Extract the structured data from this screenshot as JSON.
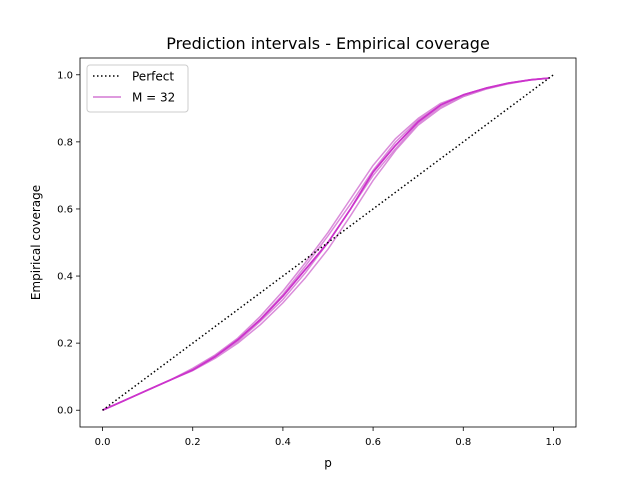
{
  "chart_data": {
    "type": "line",
    "title": "Prediction intervals - Empirical coverage",
    "xlabel": "p",
    "ylabel": "Empirical coverage",
    "xlim": [
      -0.05,
      1.05
    ],
    "ylim": [
      -0.05,
      1.05
    ],
    "xticks": [
      0.0,
      0.2,
      0.4,
      0.6,
      0.8,
      1.0
    ],
    "xtick_labels": [
      "0.0",
      "0.2",
      "0.4",
      "0.6",
      "0.8",
      "1.0"
    ],
    "yticks": [
      0.0,
      0.2,
      0.4,
      0.6,
      0.8,
      1.0
    ],
    "ytick_labels": [
      "0.0",
      "0.2",
      "0.4",
      "0.6",
      "0.8",
      "1.0"
    ],
    "grid": false,
    "legend_position": "upper left",
    "series": [
      {
        "name": "Perfect",
        "style": "dotted",
        "color": "#000000",
        "x": [
          0.0,
          1.0
        ],
        "y": [
          0.0,
          1.0
        ]
      },
      {
        "name": "M = 32",
        "style": "solid",
        "color": "#cc33cc",
        "x": [
          0.0,
          0.05,
          0.1,
          0.15,
          0.2,
          0.25,
          0.3,
          0.35,
          0.4,
          0.45,
          0.5,
          0.55,
          0.6,
          0.65,
          0.7,
          0.75,
          0.8,
          0.85,
          0.9,
          0.95,
          0.99
        ],
        "y": [
          0.0,
          0.03,
          0.06,
          0.09,
          0.12,
          0.16,
          0.21,
          0.27,
          0.34,
          0.42,
          0.5,
          0.6,
          0.71,
          0.79,
          0.86,
          0.91,
          0.94,
          0.96,
          0.975,
          0.985,
          0.99
        ],
        "variants": [
          [
            0.0,
            0.03,
            0.06,
            0.09,
            0.125,
            0.165,
            0.215,
            0.28,
            0.355,
            0.44,
            0.53,
            0.63,
            0.73,
            0.81,
            0.87,
            0.915,
            0.94,
            0.96,
            0.975,
            0.985,
            0.99
          ],
          [
            0.0,
            0.03,
            0.06,
            0.09,
            0.12,
            0.16,
            0.205,
            0.265,
            0.33,
            0.41,
            0.5,
            0.6,
            0.7,
            0.78,
            0.855,
            0.905,
            0.935,
            0.958,
            0.974,
            0.985,
            0.99
          ],
          [
            0.0,
            0.03,
            0.06,
            0.09,
            0.118,
            0.155,
            0.2,
            0.255,
            0.32,
            0.395,
            0.48,
            0.58,
            0.685,
            0.775,
            0.85,
            0.9,
            0.935,
            0.957,
            0.973,
            0.985,
            0.99
          ],
          [
            0.0,
            0.03,
            0.06,
            0.09,
            0.122,
            0.163,
            0.21,
            0.272,
            0.345,
            0.43,
            0.52,
            0.615,
            0.715,
            0.8,
            0.865,
            0.91,
            0.94,
            0.96,
            0.975,
            0.985,
            0.99
          ]
        ]
      }
    ]
  }
}
